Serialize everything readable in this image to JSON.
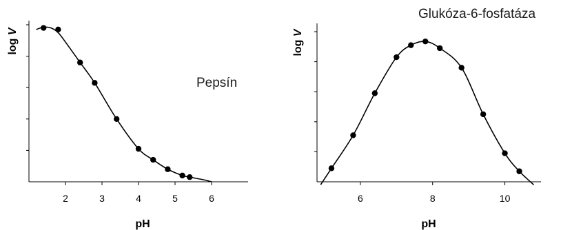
{
  "chart_data": [
    {
      "type": "line",
      "annotation": "Pepsín",
      "xlabel": "pH",
      "ylabel_prefix": "log ",
      "ylabel_var": "V",
      "xlim": [
        1.0,
        7.0
      ],
      "ylim": [
        0,
        1.0
      ],
      "x_ticks": [
        2,
        3,
        4,
        5,
        6
      ],
      "y_tick_count": 5,
      "show_y_tick_labels": false,
      "grid": false,
      "series": [
        {
          "x": [
            1.4,
            1.8,
            2.4,
            2.8,
            3.4,
            4.0,
            4.4,
            4.8,
            5.2,
            5.4
          ],
          "y": [
            0.98,
            0.97,
            0.76,
            0.63,
            0.4,
            0.21,
            0.14,
            0.08,
            0.04,
            0.03
          ]
        }
      ],
      "curve_x": [
        1.2,
        1.4,
        1.6,
        1.8,
        2.0,
        2.4,
        2.8,
        3.4,
        4.0,
        4.4,
        4.8,
        5.2,
        5.4,
        5.8,
        6.0
      ],
      "curve_y": [
        0.97,
        0.985,
        0.98,
        0.95,
        0.89,
        0.76,
        0.63,
        0.4,
        0.21,
        0.14,
        0.08,
        0.04,
        0.03,
        0.012,
        0.0
      ]
    },
    {
      "type": "line",
      "annotation": "Glukóza-6-fosfatáza",
      "xlabel": "pH",
      "ylabel_prefix": "log ",
      "ylabel_var": "V",
      "xlim": [
        4.8,
        11.0
      ],
      "ylim": [
        0,
        1.0
      ],
      "x_ticks": [
        6,
        8,
        10
      ],
      "y_tick_count": 5,
      "show_y_tick_labels": false,
      "grid": false,
      "series": [
        {
          "x": [
            5.2,
            5.8,
            6.4,
            7.0,
            7.4,
            7.8,
            8.2,
            8.8,
            9.4,
            10.0,
            10.4
          ],
          "y": [
            0.09,
            0.31,
            0.59,
            0.83,
            0.91,
            0.935,
            0.89,
            0.76,
            0.45,
            0.19,
            0.07
          ]
        }
      ],
      "curve_x": [
        4.9,
        5.2,
        5.8,
        6.4,
        7.0,
        7.4,
        7.8,
        8.2,
        8.8,
        9.4,
        10.0,
        10.4,
        10.8
      ],
      "curve_y": [
        -0.02,
        0.09,
        0.31,
        0.59,
        0.83,
        0.91,
        0.935,
        0.89,
        0.76,
        0.45,
        0.19,
        0.07,
        -0.02
      ]
    }
  ]
}
